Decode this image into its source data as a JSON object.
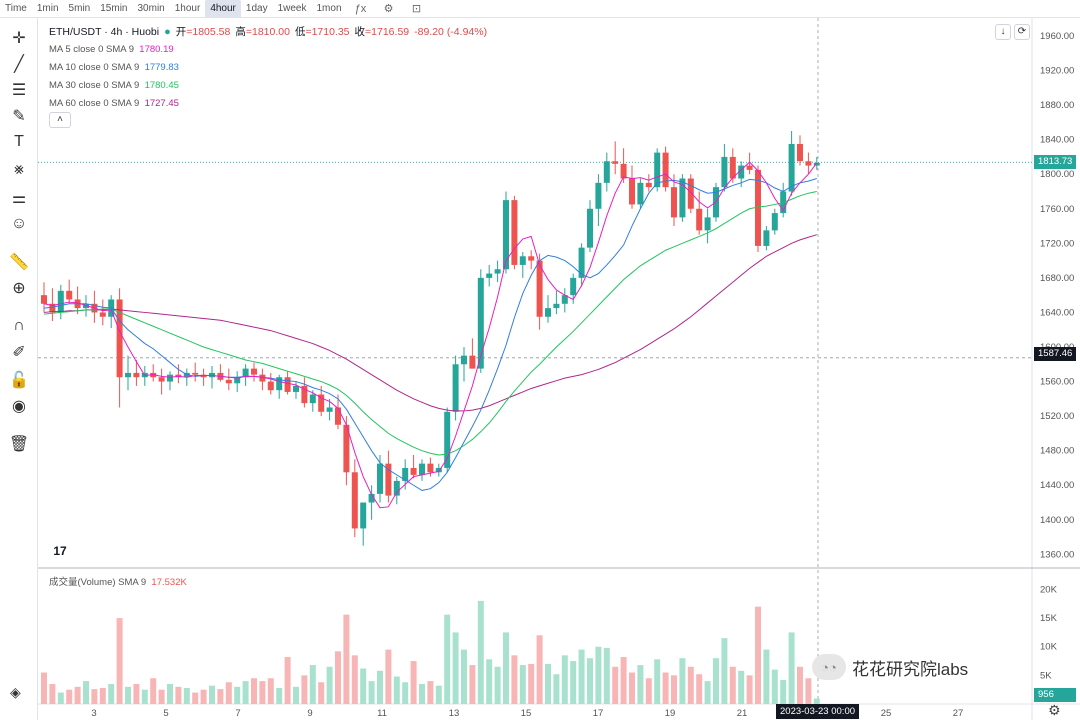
{
  "topbar": {
    "timeframes": [
      "Time",
      "1min",
      "5min",
      "15min",
      "30min",
      "1hour",
      "4hour",
      "1day",
      "1week",
      "1mon"
    ],
    "active": "4hour"
  },
  "header": {
    "symbol": "ETH/USDT · 4h · Huobi",
    "open_label": "开",
    "open": "=1805.58",
    "high_label": "高",
    "high": "=1810.00",
    "low_label": "低",
    "low": "=1710.35",
    "close_label": "收",
    "close": "=1716.59",
    "change": "-89.20 (-4.94%)"
  },
  "indicators": [
    {
      "name": "MA 5 close 0 SMA 9",
      "value": "1780.19",
      "color": "#e91ec8"
    },
    {
      "name": "MA 10 close 0 SMA 9",
      "value": "1779.83",
      "color": "#2f7fe0"
    },
    {
      "name": "MA 30 close 0 SMA 9",
      "value": "1780.45",
      "color": "#22c55e"
    },
    {
      "name": "MA 60 close 0 SMA 9",
      "value": "1727.45",
      "color": "#b0268c"
    }
  ],
  "volume_legend": {
    "name": "成交量(Volume) SMA 9",
    "value": "17.532K"
  },
  "price_axis": {
    "ticks": [
      "1960.00",
      "1920.00",
      "1880.00",
      "1840.00",
      "1800.00",
      "1760.00",
      "1720.00",
      "1680.00",
      "1640.00",
      "1600.00",
      "1560.00",
      "1520.00",
      "1480.00",
      "1440.00",
      "1400.00",
      "1360.00"
    ],
    "current_price": "1813.73",
    "crosshair_price": "1587.46"
  },
  "volume_axis": {
    "ticks": [
      "20K",
      "15K",
      "10K",
      "5K"
    ],
    "current": "956"
  },
  "time_axis": {
    "ticks": [
      "3",
      "5",
      "7",
      "9",
      "11",
      "13",
      "15",
      "17",
      "19",
      "21",
      "25",
      "27"
    ],
    "crosshair_label": "2023-03-23   00:00"
  },
  "watermark": "花花研究院labs",
  "logo": "17",
  "colors": {
    "up": "#26a69a",
    "down": "#ef5350",
    "up_vol": "#a8e2cf",
    "down_vol": "#f7b6b5"
  },
  "chart_data": {
    "type": "candlestick",
    "ylim": [
      1350,
      1975
    ],
    "vol_ylim": [
      0,
      22000
    ],
    "ohlc": [
      [
        1660,
        1675,
        1640,
        1650
      ],
      [
        1650,
        1668,
        1630,
        1640
      ],
      [
        1640,
        1672,
        1632,
        1665
      ],
      [
        1665,
        1678,
        1650,
        1655
      ],
      [
        1655,
        1670,
        1638,
        1645
      ],
      [
        1645,
        1660,
        1635,
        1650
      ],
      [
        1650,
        1665,
        1628,
        1640
      ],
      [
        1640,
        1655,
        1625,
        1635
      ],
      [
        1635,
        1660,
        1622,
        1655
      ],
      [
        1655,
        1668,
        1530,
        1565
      ],
      [
        1565,
        1590,
        1550,
        1570
      ],
      [
        1570,
        1585,
        1555,
        1565
      ],
      [
        1565,
        1578,
        1555,
        1570
      ],
      [
        1570,
        1580,
        1560,
        1565
      ],
      [
        1565,
        1575,
        1545,
        1560
      ],
      [
        1560,
        1572,
        1550,
        1568
      ],
      [
        1568,
        1580,
        1558,
        1565
      ],
      [
        1565,
        1575,
        1555,
        1570
      ],
      [
        1570,
        1582,
        1560,
        1568
      ],
      [
        1568,
        1575,
        1555,
        1565
      ],
      [
        1565,
        1578,
        1552,
        1570
      ],
      [
        1570,
        1580,
        1560,
        1562
      ],
      [
        1562,
        1575,
        1550,
        1558
      ],
      [
        1558,
        1572,
        1548,
        1565
      ],
      [
        1565,
        1580,
        1555,
        1575
      ],
      [
        1575,
        1582,
        1560,
        1568
      ],
      [
        1568,
        1575,
        1550,
        1560
      ],
      [
        1560,
        1570,
        1545,
        1550
      ],
      [
        1550,
        1568,
        1540,
        1565
      ],
      [
        1565,
        1572,
        1545,
        1548
      ],
      [
        1548,
        1560,
        1540,
        1555
      ],
      [
        1555,
        1565,
        1530,
        1535
      ],
      [
        1535,
        1550,
        1525,
        1545
      ],
      [
        1545,
        1555,
        1520,
        1525
      ],
      [
        1525,
        1540,
        1515,
        1530
      ],
      [
        1530,
        1545,
        1505,
        1510
      ],
      [
        1510,
        1520,
        1440,
        1455
      ],
      [
        1455,
        1470,
        1380,
        1390
      ],
      [
        1390,
        1420,
        1370,
        1420
      ],
      [
        1420,
        1440,
        1400,
        1430
      ],
      [
        1430,
        1475,
        1420,
        1465
      ],
      [
        1465,
        1480,
        1420,
        1428
      ],
      [
        1428,
        1450,
        1418,
        1445
      ],
      [
        1445,
        1470,
        1435,
        1460
      ],
      [
        1460,
        1475,
        1448,
        1452
      ],
      [
        1452,
        1470,
        1445,
        1465
      ],
      [
        1465,
        1472,
        1450,
        1455
      ],
      [
        1455,
        1465,
        1450,
        1460
      ],
      [
        1460,
        1530,
        1455,
        1525
      ],
      [
        1525,
        1590,
        1515,
        1580
      ],
      [
        1580,
        1600,
        1560,
        1590
      ],
      [
        1590,
        1610,
        1575,
        1575
      ],
      [
        1575,
        1690,
        1570,
        1680
      ],
      [
        1680,
        1695,
        1670,
        1685
      ],
      [
        1685,
        1700,
        1675,
        1690
      ],
      [
        1690,
        1780,
        1685,
        1770
      ],
      [
        1770,
        1775,
        1690,
        1695
      ],
      [
        1695,
        1710,
        1680,
        1705
      ],
      [
        1705,
        1712,
        1690,
        1700
      ],
      [
        1700,
        1708,
        1620,
        1635
      ],
      [
        1635,
        1660,
        1628,
        1645
      ],
      [
        1645,
        1665,
        1638,
        1650
      ],
      [
        1650,
        1668,
        1640,
        1660
      ],
      [
        1660,
        1685,
        1650,
        1680
      ],
      [
        1680,
        1720,
        1670,
        1715
      ],
      [
        1715,
        1770,
        1710,
        1760
      ],
      [
        1760,
        1800,
        1740,
        1790
      ],
      [
        1790,
        1825,
        1780,
        1815
      ],
      [
        1815,
        1838,
        1800,
        1812
      ],
      [
        1812,
        1830,
        1790,
        1795
      ],
      [
        1795,
        1810,
        1760,
        1765
      ],
      [
        1765,
        1795,
        1760,
        1790
      ],
      [
        1790,
        1800,
        1780,
        1785
      ],
      [
        1785,
        1830,
        1780,
        1825
      ],
      [
        1825,
        1832,
        1780,
        1785
      ],
      [
        1785,
        1800,
        1740,
        1750
      ],
      [
        1750,
        1800,
        1745,
        1795
      ],
      [
        1795,
        1800,
        1755,
        1760
      ],
      [
        1760,
        1780,
        1730,
        1735
      ],
      [
        1735,
        1760,
        1720,
        1750
      ],
      [
        1750,
        1790,
        1745,
        1785
      ],
      [
        1785,
        1835,
        1780,
        1820
      ],
      [
        1820,
        1830,
        1790,
        1795
      ],
      [
        1795,
        1815,
        1785,
        1810
      ],
      [
        1810,
        1825,
        1800,
        1805
      ],
      [
        1805,
        1810,
        1710,
        1717
      ],
      [
        1717,
        1740,
        1712,
        1735
      ],
      [
        1735,
        1760,
        1730,
        1755
      ],
      [
        1755,
        1790,
        1750,
        1780
      ],
      [
        1780,
        1850,
        1775,
        1835
      ],
      [
        1835,
        1845,
        1810,
        1815
      ],
      [
        1815,
        1825,
        1800,
        1810
      ],
      [
        1810,
        1820,
        1805,
        1813
      ]
    ],
    "volume": [
      5500,
      3500,
      2000,
      2500,
      3000,
      4000,
      2600,
      2800,
      3500,
      15000,
      3000,
      3500,
      2500,
      4500,
      2500,
      3500,
      3000,
      2800,
      2000,
      2500,
      3200,
      2600,
      3800,
      3000,
      4000,
      4500,
      4000,
      4500,
      2800,
      8200,
      3000,
      5000,
      6800,
      3800,
      6500,
      9200,
      15600,
      8500,
      6200,
      4000,
      5800,
      9500,
      4800,
      3800,
      7500,
      3500,
      4000,
      3200,
      15600,
      12500,
      9500,
      6800,
      18000,
      7800,
      6500,
      12500,
      8500,
      6800,
      7000,
      12000,
      7000,
      5200,
      8500,
      7500,
      9500,
      8000,
      10000,
      9800,
      6500,
      8200,
      5500,
      6800,
      4500,
      7800,
      5500,
      5000,
      8000,
      6500,
      5200,
      4000,
      8000,
      11500,
      6500,
      5800,
      5000,
      17000,
      9500,
      6000,
      4200,
      12500,
      6500,
      4500,
      956
    ],
    "ma5": [
      1650,
      1648,
      1650,
      1652,
      1651,
      1648,
      1645,
      1642,
      1643,
      1618,
      1600,
      1583,
      1567,
      1568,
      1566,
      1565,
      1566,
      1565,
      1567,
      1567,
      1567,
      1566,
      1565,
      1564,
      1566,
      1566,
      1565,
      1563,
      1560,
      1558,
      1556,
      1551,
      1547,
      1541,
      1537,
      1529,
      1510,
      1478,
      1450,
      1429,
      1414,
      1415,
      1432,
      1441,
      1450,
      1452,
      1454,
      1456,
      1471,
      1497,
      1526,
      1555,
      1590,
      1622,
      1658,
      1700,
      1714,
      1725,
      1728,
      1695,
      1678,
      1666,
      1660,
      1655,
      1671,
      1692,
      1721,
      1752,
      1778,
      1797,
      1795,
      1796,
      1793,
      1797,
      1800,
      1791,
      1788,
      1779,
      1768,
      1761,
      1768,
      1784,
      1796,
      1805,
      1814,
      1804,
      1790,
      1772,
      1758,
      1778,
      1790,
      1800,
      1813
    ],
    "ma10": [
      1645,
      1646,
      1648,
      1650,
      1650,
      1650,
      1648,
      1646,
      1645,
      1630,
      1620,
      1612,
      1604,
      1598,
      1590,
      1582,
      1574,
      1568,
      1566,
      1567,
      1567,
      1566,
      1565,
      1565,
      1566,
      1566,
      1565,
      1564,
      1562,
      1561,
      1560,
      1557,
      1553,
      1550,
      1546,
      1540,
      1528,
      1512,
      1496,
      1480,
      1466,
      1458,
      1452,
      1446,
      1440,
      1434,
      1436,
      1443,
      1455,
      1472,
      1490,
      1508,
      1527,
      1550,
      1575,
      1602,
      1634,
      1662,
      1683,
      1700,
      1706,
      1704,
      1700,
      1693,
      1684,
      1680,
      1685,
      1695,
      1706,
      1718,
      1740,
      1760,
      1778,
      1790,
      1792,
      1793,
      1791,
      1787,
      1782,
      1778,
      1779,
      1783,
      1787,
      1790,
      1794,
      1793,
      1790,
      1784,
      1780,
      1786,
      1790,
      1792,
      1795
    ],
    "ma30": [
      1638,
      1639,
      1640,
      1641,
      1642,
      1643,
      1643,
      1644,
      1644,
      1640,
      1636,
      1632,
      1628,
      1624,
      1620,
      1616,
      1612,
      1608,
      1604,
      1600,
      1597,
      1594,
      1591,
      1588,
      1585,
      1583,
      1581,
      1578,
      1575,
      1572,
      1569,
      1566,
      1563,
      1560,
      1556,
      1551,
      1544,
      1535,
      1525,
      1516,
      1508,
      1500,
      1494,
      1489,
      1484,
      1480,
      1477,
      1475,
      1476,
      1480,
      1486,
      1493,
      1502,
      1512,
      1524,
      1537,
      1549,
      1560,
      1571,
      1580,
      1590,
      1600,
      1609,
      1618,
      1628,
      1638,
      1648,
      1658,
      1668,
      1678,
      1686,
      1694,
      1700,
      1706,
      1712,
      1716,
      1720,
      1724,
      1728,
      1732,
      1737,
      1743,
      1749,
      1755,
      1760,
      1762,
      1763,
      1765,
      1767,
      1771,
      1775,
      1778,
      1780
    ],
    "ma60": [
      1640,
      1641,
      1641,
      1642,
      1642,
      1643,
      1643,
      1643,
      1644,
      1643,
      1642,
      1641,
      1640,
      1639,
      1638,
      1637,
      1636,
      1635,
      1634,
      1633,
      1632,
      1631,
      1629,
      1627,
      1625,
      1623,
      1621,
      1619,
      1616,
      1613,
      1610,
      1607,
      1604,
      1600,
      1596,
      1591,
      1586,
      1580,
      1574,
      1568,
      1562,
      1556,
      1550,
      1545,
      1540,
      1536,
      1532,
      1529,
      1527,
      1526,
      1526,
      1527,
      1529,
      1532,
      1536,
      1540,
      1544,
      1548,
      1552,
      1555,
      1558,
      1561,
      1564,
      1566,
      1568,
      1571,
      1574,
      1578,
      1582,
      1587,
      1592,
      1597,
      1603,
      1609,
      1615,
      1621,
      1628,
      1635,
      1643,
      1651,
      1659,
      1667,
      1675,
      1683,
      1691,
      1698,
      1705,
      1710,
      1715,
      1720,
      1724,
      1727,
      1730
    ]
  }
}
